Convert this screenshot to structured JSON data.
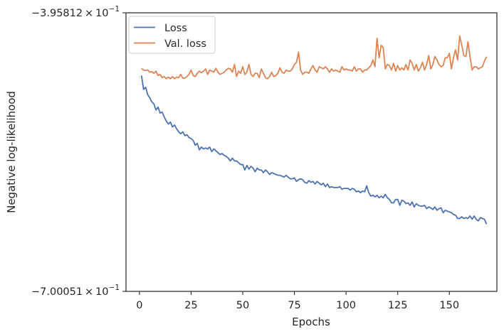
{
  "chart_data": {
    "type": "line",
    "xlabel": "Epochs",
    "ylabel": "Negative log-likelihood",
    "x_ticks": [
      0,
      25,
      50,
      75,
      100,
      125,
      150
    ],
    "x_tick_labels": [
      "0",
      "25",
      "50",
      "75",
      "100",
      "125",
      "150"
    ],
    "xlim": [
      -6.5,
      173
    ],
    "y_scale": "log (negated)",
    "ylim": [
      -0.700051,
      -0.395812
    ],
    "y_tick_labels": [
      {
        "mantissa": "−3.95812",
        "exponent": "−1"
      },
      {
        "mantissa": "−7.00051",
        "exponent": "−1"
      }
    ],
    "legend_position": "top-left",
    "grid": false,
    "colors": {
      "loss": "#4c72b0",
      "val_loss": "#dd8452"
    },
    "series": [
      {
        "name": "Loss",
        "color": "#4c72b0",
        "x_start": 1,
        "values": [
          -0.45,
          -0.463,
          -0.461,
          -0.468,
          -0.471,
          -0.475,
          -0.477,
          -0.483,
          -0.48,
          -0.486,
          -0.485,
          -0.49,
          -0.494,
          -0.497,
          -0.495,
          -0.5,
          -0.498,
          -0.502,
          -0.505,
          -0.507,
          -0.505,
          -0.509,
          -0.508,
          -0.511,
          -0.512,
          -0.514,
          -0.519,
          -0.517,
          -0.524,
          -0.521,
          -0.523,
          -0.522,
          -0.523,
          -0.521,
          -0.526,
          -0.523,
          -0.525,
          -0.527,
          -0.529,
          -0.528,
          -0.53,
          -0.531,
          -0.533,
          -0.536,
          -0.533,
          -0.536,
          -0.536,
          -0.538,
          -0.54,
          -0.54,
          -0.546,
          -0.541,
          -0.545,
          -0.542,
          -0.544,
          -0.548,
          -0.544,
          -0.546,
          -0.546,
          -0.549,
          -0.546,
          -0.548,
          -0.551,
          -0.549,
          -0.55,
          -0.551,
          -0.552,
          -0.552,
          -0.553,
          -0.554,
          -0.552,
          -0.554,
          -0.556,
          -0.556,
          -0.555,
          -0.559,
          -0.557,
          -0.556,
          -0.557,
          -0.56,
          -0.561,
          -0.558,
          -0.56,
          -0.559,
          -0.562,
          -0.559,
          -0.561,
          -0.563,
          -0.561,
          -0.565,
          -0.562,
          -0.566,
          -0.565,
          -0.566,
          -0.566,
          -0.566,
          -0.565,
          -0.568,
          -0.567,
          -0.567,
          -0.567,
          -0.569,
          -0.567,
          -0.568,
          -0.571,
          -0.57,
          -0.572,
          -0.57,
          -0.571,
          -0.564,
          -0.572,
          -0.576,
          -0.575,
          -0.577,
          -0.575,
          -0.578,
          -0.576,
          -0.578,
          -0.574,
          -0.578,
          -0.58,
          -0.584,
          -0.584,
          -0.58,
          -0.58,
          -0.587,
          -0.581,
          -0.582,
          -0.585,
          -0.584,
          -0.587,
          -0.583,
          -0.589,
          -0.585,
          -0.587,
          -0.588,
          -0.588,
          -0.587,
          -0.591,
          -0.589,
          -0.59,
          -0.592,
          -0.589,
          -0.593,
          -0.591,
          -0.59,
          -0.596,
          -0.593,
          -0.594,
          -0.595,
          -0.596,
          -0.598,
          -0.599,
          -0.603,
          -0.603,
          -0.601,
          -0.603,
          -0.602,
          -0.603,
          -0.6,
          -0.604,
          -0.6,
          -0.604,
          -0.606,
          -0.602,
          -0.603,
          -0.604,
          -0.61
        ]
      },
      {
        "name": "Val. loss",
        "color": "#dd8452",
        "x_start": 1,
        "values": [
          -0.4435,
          -0.445,
          -0.4455,
          -0.445,
          -0.447,
          -0.4465,
          -0.448,
          -0.446,
          -0.45,
          -0.449,
          -0.452,
          -0.451,
          -0.453,
          -0.4515,
          -0.453,
          -0.451,
          -0.453,
          -0.4515,
          -0.452,
          -0.449,
          -0.4525,
          -0.4525,
          -0.451,
          -0.449,
          -0.445,
          -0.45,
          -0.451,
          -0.448,
          -0.446,
          -0.4475,
          -0.446,
          -0.444,
          -0.449,
          -0.445,
          -0.446,
          -0.447,
          -0.4435,
          -0.447,
          -0.449,
          -0.448,
          -0.447,
          -0.445,
          -0.4435,
          -0.444,
          -0.447,
          -0.44,
          -0.451,
          -0.446,
          -0.448,
          -0.442,
          -0.449,
          -0.447,
          -0.44,
          -0.449,
          -0.451,
          -0.448,
          -0.448,
          -0.452,
          -0.444,
          -0.448,
          -0.452,
          -0.453,
          -0.451,
          -0.447,
          -0.451,
          -0.45,
          -0.448,
          -0.443,
          -0.447,
          -0.448,
          -0.445,
          -0.446,
          -0.446,
          -0.444,
          -0.44,
          -0.438,
          -0.429,
          -0.445,
          -0.449,
          -0.447,
          -0.447,
          -0.448,
          -0.444,
          -0.441,
          -0.445,
          -0.447,
          -0.442,
          -0.443,
          -0.444,
          -0.442,
          -0.444,
          -0.447,
          -0.444,
          -0.446,
          -0.445,
          -0.446,
          -0.447,
          -0.442,
          -0.445,
          -0.444,
          -0.445,
          -0.445,
          -0.446,
          -0.442,
          -0.446,
          -0.444,
          -0.444,
          -0.447,
          -0.445,
          -0.445,
          -0.443,
          -0.441,
          -0.436,
          -0.442,
          -0.417,
          -0.434,
          -0.423,
          -0.425,
          -0.444,
          -0.44,
          -0.441,
          -0.445,
          -0.439,
          -0.446,
          -0.441,
          -0.445,
          -0.443,
          -0.445,
          -0.44,
          -0.445,
          -0.436,
          -0.439,
          -0.445,
          -0.44,
          -0.446,
          -0.443,
          -0.438,
          -0.445,
          -0.44,
          -0.432,
          -0.444,
          -0.44,
          -0.433,
          -0.436,
          -0.44,
          -0.442,
          -0.441,
          -0.434,
          -0.434,
          -0.43,
          -0.444,
          -0.434,
          -0.427,
          -0.436,
          -0.415,
          -0.423,
          -0.432,
          -0.433,
          -0.42,
          -0.433,
          -0.445,
          -0.442,
          -0.442,
          -0.444,
          -0.443,
          -0.442,
          -0.437,
          -0.433
        ]
      }
    ]
  }
}
